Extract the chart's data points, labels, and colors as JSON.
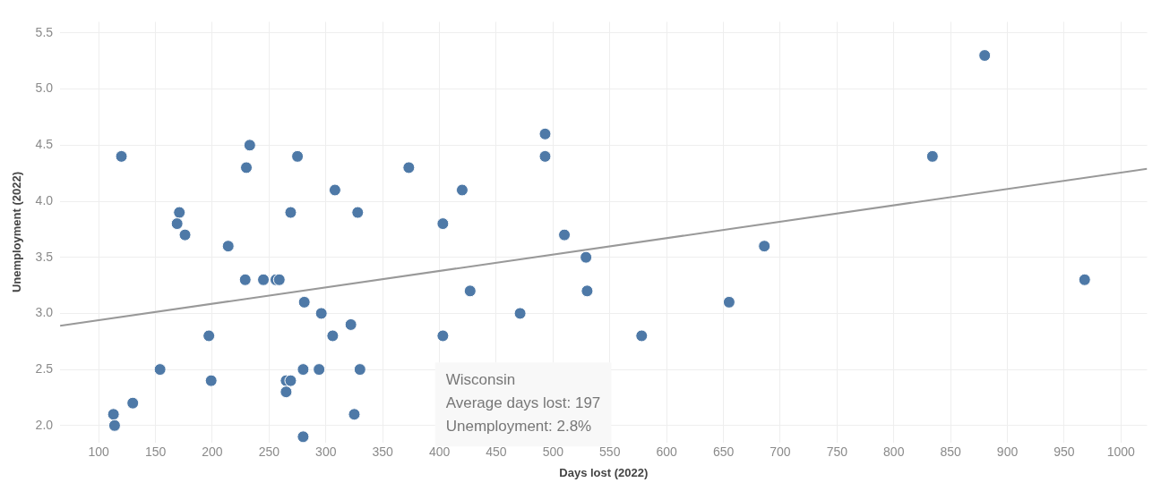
{
  "chart_data": {
    "type": "scatter",
    "xlabel": "Days lost (2022)",
    "ylabel": "Unemployment (2022)",
    "xlim": [
      66,
      1023
    ],
    "ylim": [
      1.85,
      5.6
    ],
    "xticks": [
      100,
      150,
      200,
      250,
      300,
      350,
      400,
      450,
      500,
      550,
      600,
      650,
      700,
      750,
      800,
      850,
      900,
      950,
      1000
    ],
    "yticks": [
      {
        "value": 2,
        "label": "2.0"
      },
      2.5,
      {
        "value": 3,
        "label": "3.0"
      },
      3.5,
      {
        "value": 4,
        "label": "4.0"
      },
      4.5,
      {
        "value": 5,
        "label": "5.0"
      },
      5.5
    ],
    "grid": true,
    "legend": false,
    "marker": "circle",
    "series": [
      {
        "color": "#4e79a7",
        "x": [
          120,
          233,
          230,
          275,
          308,
          171,
          269,
          328,
          169,
          176,
          214,
          229,
          245,
          256,
          259,
          281,
          296,
          322,
          197,
          306,
          154,
          280,
          294,
          330,
          199,
          265,
          269,
          265,
          130,
          113,
          325,
          114,
          280,
          373,
          420,
          493,
          493,
          403,
          510,
          529,
          427,
          530,
          471,
          403,
          578,
          880,
          834,
          686,
          655,
          968
        ],
        "values": [
          4.4,
          4.5,
          4.3,
          4.4,
          4.1,
          3.9,
          3.9,
          3.9,
          3.8,
          3.7,
          3.6,
          3.3,
          3.3,
          3.3,
          3.3,
          3.1,
          3.0,
          2.9,
          2.8,
          2.8,
          2.5,
          2.5,
          2.5,
          2.5,
          2.4,
          2.4,
          2.4,
          2.3,
          2.2,
          2.1,
          2.1,
          2.0,
          1.9,
          4.3,
          4.1,
          4.6,
          4.4,
          3.8,
          3.7,
          3.5,
          3.2,
          3.2,
          3.0,
          2.8,
          2.8,
          5.3,
          4.4,
          3.6,
          3.1,
          3.3
        ]
      },
      {
        "type": "line",
        "color": "#999999",
        "marker": "none",
        "line_style": "solid",
        "x": [
          66,
          1023
        ],
        "values": [
          2.89,
          4.29
        ]
      }
    ],
    "annotations": [
      "Wisconsin\nAverage days lost: 197\nUnemployment: 2.8%"
    ]
  }
}
